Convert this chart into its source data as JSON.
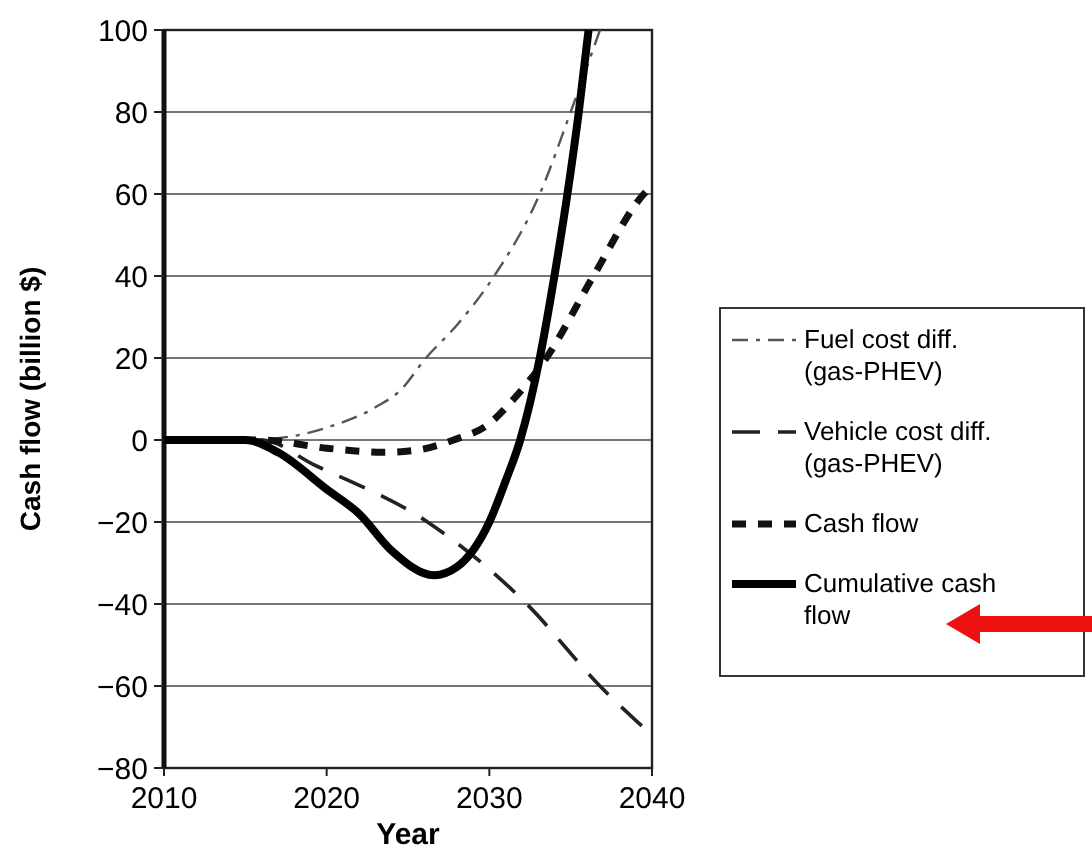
{
  "chart_data": {
    "type": "line",
    "xlabel": "Year",
    "ylabel": "Cash flow (billion $)",
    "xlim": [
      2010,
      2040
    ],
    "ylim": [
      -80,
      100
    ],
    "xticks": [
      2010,
      2020,
      2030,
      2040
    ],
    "yticks": [
      -80,
      -60,
      -40,
      -20,
      0,
      20,
      40,
      60,
      80,
      100
    ],
    "grid": "y",
    "legend": "right",
    "series": [
      {
        "name": "Fuel cost diff. (gas-PHEV)",
        "color": "#555555",
        "line_style": "dashdot",
        "x": [
          2010,
          2015,
          2018,
          2020,
          2023,
          2024.5,
          2026.1,
          2028,
          2030.3,
          2033.1,
          2035,
          2036.8
        ],
        "values": [
          0,
          0,
          1,
          3,
          8,
          12,
          20,
          28,
          40,
          60,
          80,
          100
        ]
      },
      {
        "name": "Vehicle cost diff. (gas-PHEV)",
        "color": "#222222",
        "line_style": "dashed",
        "x": [
          2010,
          2016,
          2019.2,
          2026.2,
          2032.3,
          2036.8,
          2040
        ],
        "values": [
          0,
          0,
          -6,
          -20,
          -40,
          -60,
          -72
        ]
      },
      {
        "name": "Cash flow",
        "color": "#111111",
        "line_style": "dotted",
        "x": [
          2010,
          2016,
          2020,
          2023.5,
          2025.5,
          2027.8,
          2030,
          2031.5,
          2033.5,
          2036.4,
          2039.5,
          2040
        ],
        "values": [
          0,
          0,
          -2,
          -3,
          -2.5,
          0,
          4,
          10,
          20,
          40,
          60,
          62
        ]
      },
      {
        "name": "Cumulative cash flow",
        "color": "#000000",
        "line_style": "solid",
        "x": [
          2010,
          2015,
          2017,
          2020,
          2022,
          2024,
          2026.6,
          2028,
          2030,
          2031,
          2031.9,
          2033.1,
          2034,
          2034.8,
          2035.5,
          2036.1
        ],
        "values": [
          0,
          0,
          -3,
          -12,
          -18,
          -27,
          -33,
          -31,
          -20,
          -10,
          0,
          20,
          40,
          60,
          80,
          100
        ]
      }
    ]
  }
}
